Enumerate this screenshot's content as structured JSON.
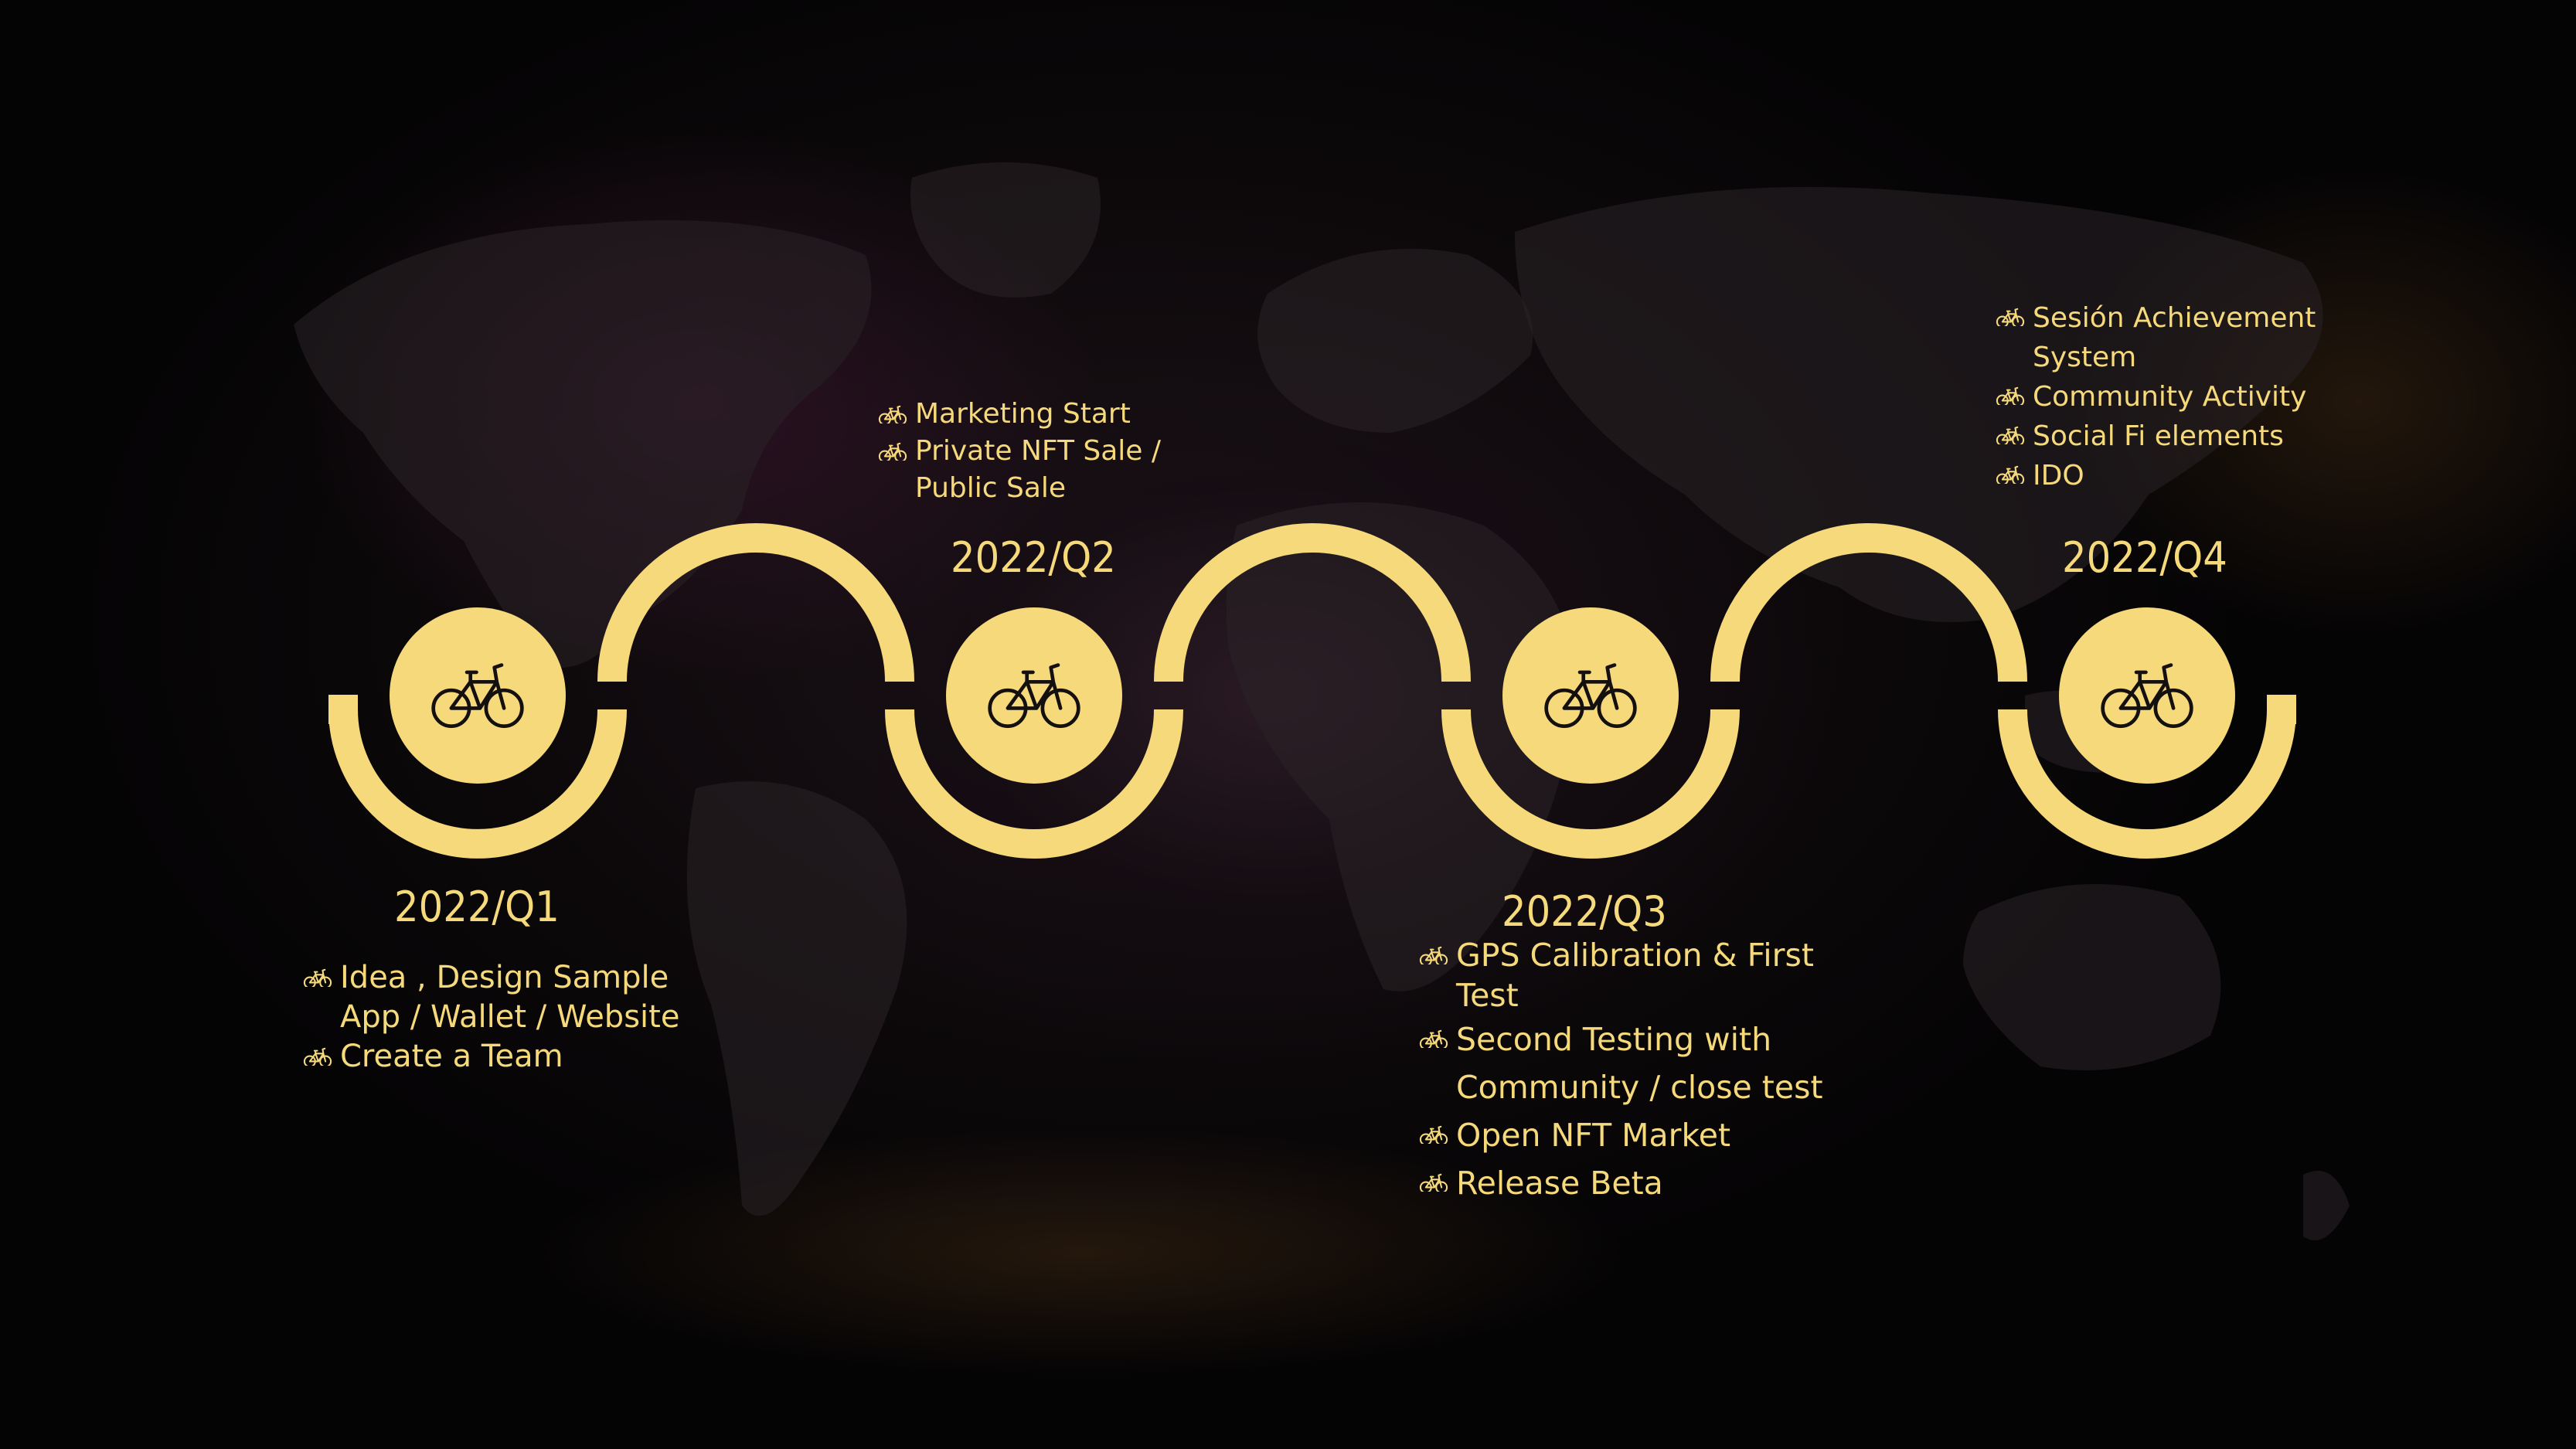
{
  "colors": {
    "accent": "#f5d97a",
    "icon_dark": "#151010",
    "background": "#0b080a"
  },
  "icons": {
    "milestone": "bicycle-icon",
    "bullet": "bicycle-icon"
  },
  "milestones": [
    {
      "label": "2022/Q1",
      "items": [
        "Idea , Design Sample",
        "App / Wallet / Website",
        "Create a Team"
      ]
    },
    {
      "label": "2022/Q2",
      "items": [
        "Marketing Start",
        "Private NFT Sale /",
        "Public Sale"
      ]
    },
    {
      "label": "2022/Q3",
      "items": [
        "GPS Calibration & First",
        "Test",
        "Second Testing with",
        "Community / close test",
        "Open NFT Market",
        "Release Beta"
      ]
    },
    {
      "label": "2022/Q4",
      "items": [
        "Sesión Achievement",
        "System",
        "Community Activity",
        "Social Fi elements",
        "IDO"
      ]
    }
  ]
}
